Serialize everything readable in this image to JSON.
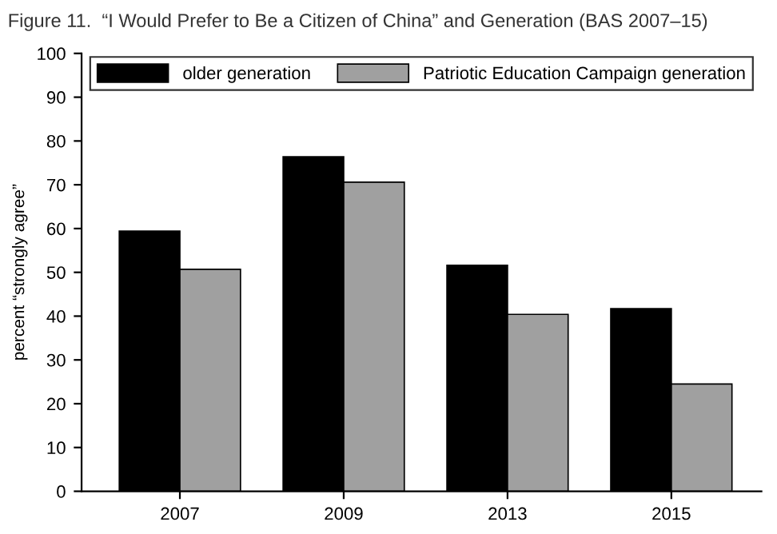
{
  "chart_data": {
    "type": "bar",
    "title": "Figure 11.  “I Would Prefer to Be a Citizen of China” and Generation (BAS 2007–15)",
    "ylabel": "percent “strongly agree”",
    "categories": [
      "2007",
      "2009",
      "2013",
      "2015"
    ],
    "series": [
      {
        "name": "older generation",
        "color": "#000000",
        "values": [
          59.4,
          76.4,
          51.6,
          41.7
        ]
      },
      {
        "name": "Patriotic Education Campaign generation",
        "color": "#a0a0a0",
        "values": [
          50.7,
          70.6,
          40.4,
          24.5
        ]
      }
    ],
    "ylim": [
      0,
      100
    ],
    "yticks": [
      0,
      10,
      20,
      30,
      40,
      50,
      60,
      70,
      80,
      90,
      100
    ],
    "grid": false,
    "legend": "top"
  }
}
